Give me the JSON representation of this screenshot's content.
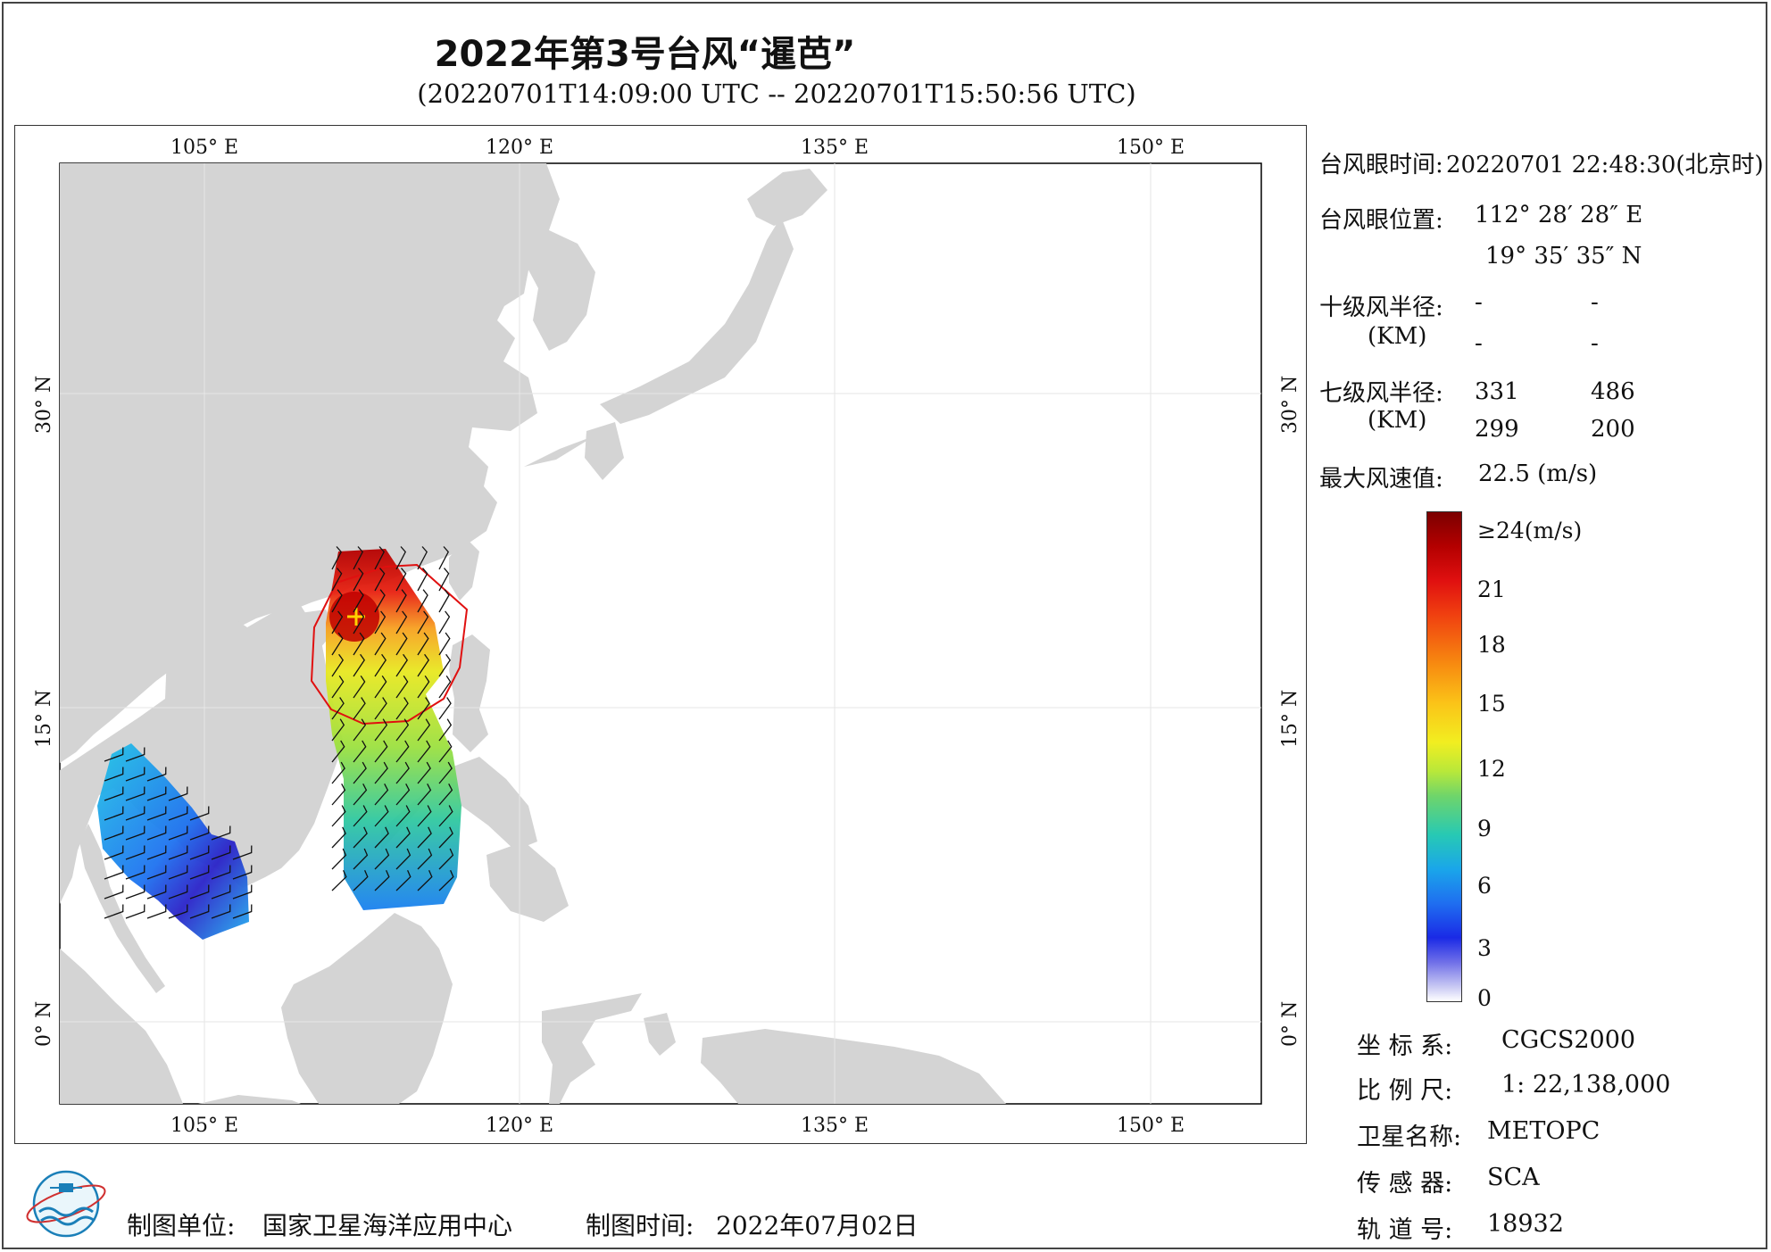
{
  "title": "2022年第3号台风“暹芭”",
  "subtitle": "(20220701T14:09:00 UTC -- 20220701T15:50:56 UTC)",
  "map": {
    "lon_labels": [
      "105° E",
      "120° E",
      "135° E",
      "150° E"
    ],
    "lat_labels": [
      "30° N",
      "15° N",
      "0° N"
    ],
    "land_color": "#d4d4d4",
    "sea_color": "#ffffff",
    "eye_position": {
      "lon": 112.474,
      "lat": 19.593
    }
  },
  "info": {
    "eye_time_label": "台风眼时间:",
    "eye_time_value": "20220701 22:48:30(北京时)",
    "eye_pos_label": "台风眼位置:",
    "eye_lon": "112° 28′ 28″ E",
    "eye_lat": "19° 35′ 35″ N",
    "r10_label": "十级风半径:",
    "r10_unit": "(KM)",
    "r10_values": [
      "-",
      "-",
      "-",
      "-"
    ],
    "r7_label": "七级风半径:",
    "r7_unit": "(KM)",
    "r7_values": [
      "331",
      "486",
      "299",
      "200"
    ],
    "max_wind_label": "最大风速值:",
    "max_wind_value": "22.5  (m/s)"
  },
  "colorbar": {
    "max_label": "≥24(m/s)",
    "ticks": [
      "21",
      "18",
      "15",
      "12",
      "9",
      "6",
      "3",
      "0"
    ]
  },
  "meta": {
    "crs_label": "坐 标 系:",
    "crs_value": "CGCS2000",
    "scale_label": "比 例 尺:",
    "scale_value": "1: 22,138,000",
    "satellite_label": "卫星名称:",
    "satellite_value": "METOPC",
    "sensor_label": "传 感 器:",
    "sensor_value": "SCA",
    "orbit_label": "轨 道 号:",
    "orbit_value": "18932"
  },
  "footer": {
    "org_label": "制图单位:",
    "org_value": "国家卫星海洋应用中心",
    "date_label": "制图时间:",
    "date_value": "2022年07月02日"
  }
}
